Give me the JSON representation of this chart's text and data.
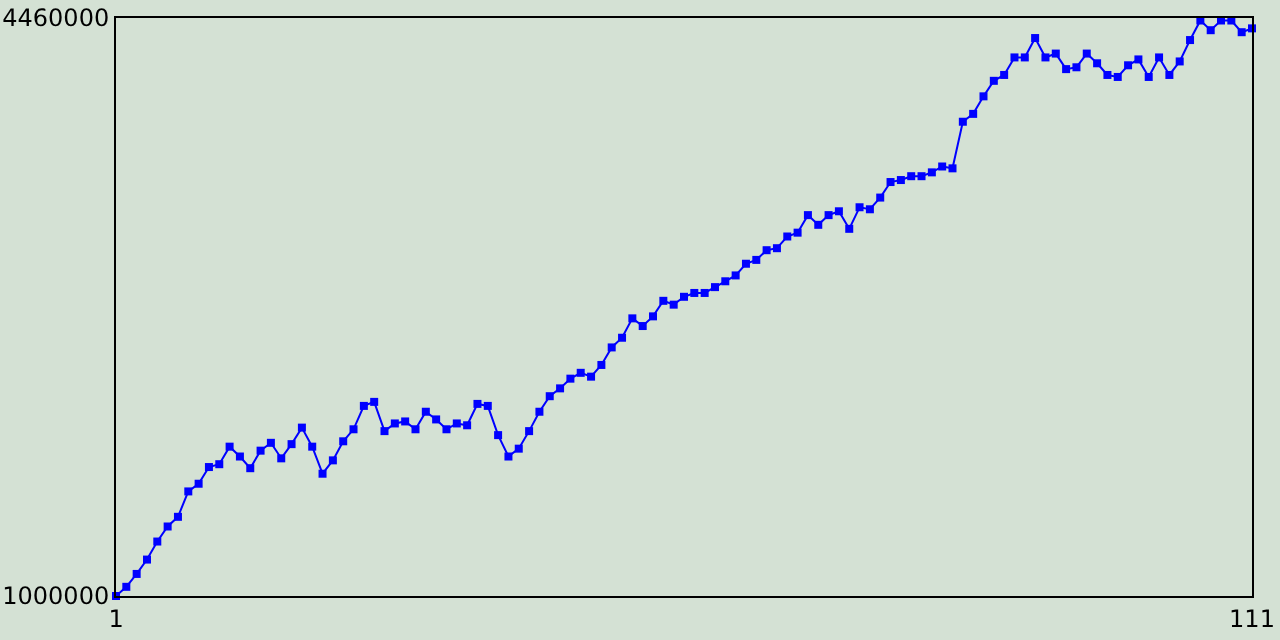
{
  "chart_data": {
    "type": "line",
    "marker": "square",
    "line_style": "solid",
    "x": [
      1,
      2,
      3,
      4,
      5,
      6,
      7,
      8,
      9,
      10,
      11,
      12,
      13,
      14,
      15,
      16,
      17,
      18,
      19,
      20,
      21,
      22,
      23,
      24,
      25,
      26,
      27,
      28,
      29,
      30,
      31,
      32,
      33,
      34,
      35,
      36,
      37,
      38,
      39,
      40,
      41,
      42,
      43,
      44,
      45,
      46,
      47,
      48,
      49,
      50,
      51,
      52,
      53,
      54,
      55,
      56,
      57,
      58,
      59,
      60,
      61,
      62,
      63,
      64,
      65,
      66,
      67,
      68,
      69,
      70,
      71,
      72,
      73,
      74,
      75,
      76,
      77,
      78,
      79,
      80,
      81,
      82,
      83,
      84,
      85,
      86,
      87,
      88,
      89,
      90,
      91,
      92,
      93,
      94,
      95,
      96,
      97,
      98,
      99,
      100,
      101,
      102,
      103,
      104,
      105,
      106,
      107,
      108,
      109,
      110,
      111
    ],
    "series": [
      {
        "color": "#0000ff",
        "values": [
          1000000,
          1055000,
          1132000,
          1218000,
          1326000,
          1416000,
          1474000,
          1626000,
          1672000,
          1772000,
          1789000,
          1894000,
          1835000,
          1765000,
          1870000,
          1917000,
          1824000,
          1909000,
          2008000,
          1894000,
          1732000,
          1812000,
          1926000,
          1998000,
          2138000,
          2162000,
          1987000,
          2033000,
          2045000,
          1998000,
          2103000,
          2057000,
          1998000,
          2033000,
          2022000,
          2150000,
          2138000,
          1963000,
          1835000,
          1882000,
          1987000,
          2103000,
          2196000,
          2243000,
          2301000,
          2336000,
          2313000,
          2383000,
          2488000,
          2546000,
          2662000,
          2616000,
          2674000,
          2767000,
          2744000,
          2791000,
          2814000,
          2814000,
          2849000,
          2884000,
          2919000,
          2989000,
          3012000,
          3070000,
          3082000,
          3152000,
          3175000,
          3280000,
          3222000,
          3280000,
          3303000,
          3198000,
          3327000,
          3315000,
          3385000,
          3478000,
          3490000,
          3513000,
          3513000,
          3536000,
          3571000,
          3560000,
          3839000,
          3886000,
          3991000,
          4084000,
          4119000,
          4224000,
          4224000,
          4340000,
          4224000,
          4247000,
          4154000,
          4165000,
          4247000,
          4189000,
          4119000,
          4107000,
          4177000,
          4212000,
          4107000,
          4224000,
          4119000,
          4200000,
          4328000,
          4445000,
          4387000,
          4445000,
          4445000,
          4375000,
          4398000
        ]
      }
    ],
    "xlim": [
      1,
      111
    ],
    "xticks": [
      1,
      111
    ],
    "ylim": [
      1000000,
      4460000
    ],
    "yticks": [
      1000000,
      4460000
    ]
  }
}
